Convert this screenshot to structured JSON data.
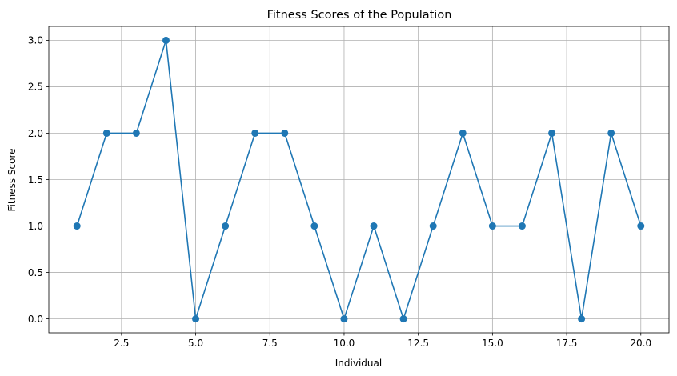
{
  "chart_data": {
    "type": "line",
    "title": "Fitness Scores of the Population",
    "xlabel": "Individual",
    "ylabel": "Fitness Score",
    "x": [
      1,
      2,
      3,
      4,
      5,
      6,
      7,
      8,
      9,
      10,
      11,
      12,
      13,
      14,
      15,
      16,
      17,
      18,
      19,
      20
    ],
    "series": [
      {
        "values": [
          1,
          2,
          2,
          3,
          0,
          1,
          2,
          2,
          1,
          0,
          1,
          0,
          1,
          2,
          1,
          1,
          2,
          0,
          2,
          1
        ]
      }
    ],
    "xticks": [
      "2.5",
      "5.0",
      "7.5",
      "10.0",
      "12.5",
      "15.0",
      "17.5",
      "20.0"
    ],
    "yticks": [
      "0.0",
      "0.5",
      "1.0",
      "1.5",
      "2.0",
      "2.5",
      "3.0"
    ],
    "xlim": [
      0.05,
      20.95
    ],
    "ylim": [
      -0.15,
      3.15
    ],
    "grid": true,
    "marker": "circle",
    "line_color": "#1f77b4"
  }
}
